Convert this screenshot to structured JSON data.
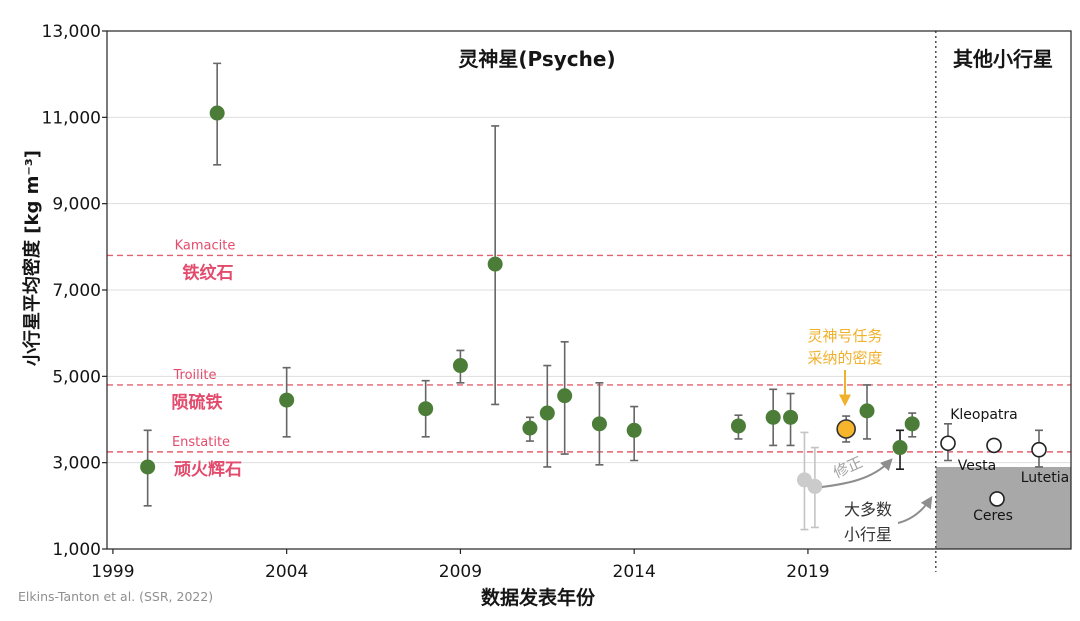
{
  "chart_data": {
    "type": "scatter",
    "panel_titles": {
      "psyche": "灵神星(Psyche)",
      "others": "其他小行星"
    },
    "xlabel": "数据发表年份",
    "ylabel": "小行星平均密度  [kg m⁻³]",
    "xlim": [
      1998.83,
      2026.57
    ],
    "ylim": [
      1000,
      13000
    ],
    "grid": true,
    "x_ticks": [
      {
        "value": 1999,
        "label": "1999"
      },
      {
        "value": 2004,
        "label": "2004"
      },
      {
        "value": 2009,
        "label": "2009"
      },
      {
        "value": 2014,
        "label": "2014"
      },
      {
        "value": 2019,
        "label": "2019"
      }
    ],
    "y_ticks": [
      {
        "value": 1000,
        "label": "1,000"
      },
      {
        "value": 3000,
        "label": "3,000"
      },
      {
        "value": 5000,
        "label": "5,000"
      },
      {
        "value": 7000,
        "label": "7,000"
      },
      {
        "value": 9000,
        "label": "9,000"
      },
      {
        "value": 11000,
        "label": "11,000"
      },
      {
        "value": 13000,
        "label": "13,000"
      }
    ],
    "panel_divider_year": 2022.68,
    "series": {
      "estimates": {
        "color": "#4b7d39",
        "bar_color": "#666666",
        "points": [
          {
            "year": 2000,
            "density": 2900,
            "low": 2000,
            "high": 3750
          },
          {
            "year": 2002,
            "density": 11100,
            "low": 9900,
            "high": 12250
          },
          {
            "year": 2004,
            "density": 4450,
            "low": 3600,
            "high": 5200
          },
          {
            "year": 2008,
            "density": 4250,
            "low": 3600,
            "high": 4900
          },
          {
            "year": 2009,
            "density": 5250,
            "low": 4850,
            "high": 5600
          },
          {
            "year": 2010,
            "density": 7600,
            "low": 4350,
            "high": 10800
          },
          {
            "year": 2011,
            "density": 3800,
            "low": 3500,
            "high": 4050
          },
          {
            "year": 2011.5,
            "density": 4150,
            "low": 2900,
            "high": 5250
          },
          {
            "year": 2012,
            "density": 4550,
            "low": 3200,
            "high": 5800
          },
          {
            "year": 2013,
            "density": 3900,
            "low": 2950,
            "high": 4850
          },
          {
            "year": 2014,
            "density": 3750,
            "low": 3050,
            "high": 4300
          },
          {
            "year": 2017,
            "density": 3850,
            "low": 3550,
            "high": 4100
          },
          {
            "year": 2018,
            "density": 4050,
            "low": 3400,
            "high": 4700
          },
          {
            "year": 2018.5,
            "density": 4050,
            "low": 3400,
            "high": 4600
          },
          {
            "year": 2020.7,
            "density": 4200,
            "low": 3550,
            "high": 4800
          },
          {
            "year": 2021.65,
            "density": 3350,
            "low": 2850,
            "high": 3750,
            "bar_color": "#1e1e1e"
          },
          {
            "year": 2022,
            "density": 3900,
            "low": 3600,
            "high": 4150
          }
        ]
      },
      "pre_correction": {
        "color": "#cbcbcb",
        "bar_color": "#c4c4c4",
        "points": [
          {
            "year": 2018.9,
            "density": 2600,
            "low": 1450,
            "high": 3700
          },
          {
            "year": 2019.2,
            "density": 2450,
            "low": 1500,
            "high": 3350
          }
        ]
      },
      "mission_adopted": {
        "color": "#f6b52b",
        "outline": "#333333",
        "bar_color": "#666666",
        "points": [
          {
            "year": 2020.1,
            "density": 3780,
            "low": 3480,
            "high": 4080
          }
        ]
      }
    },
    "reference_lines": [
      {
        "label_en": "Kamacite",
        "label_zh": "铁纹石",
        "density": 7800
      },
      {
        "label_en": "Troilite",
        "label_zh": "陨硫铁",
        "density": 4800
      },
      {
        "label_en": "Enstatite",
        "label_zh": "顽火辉石",
        "density": 3250
      }
    ],
    "other_asteroids": [
      {
        "name": "Kleopatra",
        "density": 3450,
        "low": 3050,
        "high": 3900
      },
      {
        "name": "Vesta",
        "density": 3400
      },
      {
        "name": "Ceres",
        "density": 2160
      },
      {
        "name": "Lutetia",
        "density": 3300,
        "low": 2900,
        "high": 3750
      }
    ],
    "most_asteroids": {
      "range": [
        1000,
        2900
      ],
      "label_lines": [
        "大多数",
        "小行星"
      ],
      "color": "#a8a8a8"
    },
    "annotations": {
      "mission_label_lines": [
        "灵神号任务",
        "采纳的密度"
      ],
      "correction_label": "修正"
    },
    "colors": {
      "grid": "#dedede",
      "reference": "#e5606f",
      "error_bar": "#666666",
      "axis": "#222222",
      "divider": "#333333",
      "asteroid_fill": "#ffffff",
      "asteroid_outline": "#222222",
      "mission_arrow": "#f0b12c",
      "correction_arrow": "#8e8e8e"
    }
  },
  "source": "Elkins-Tanton et al. (SSR, 2022)"
}
